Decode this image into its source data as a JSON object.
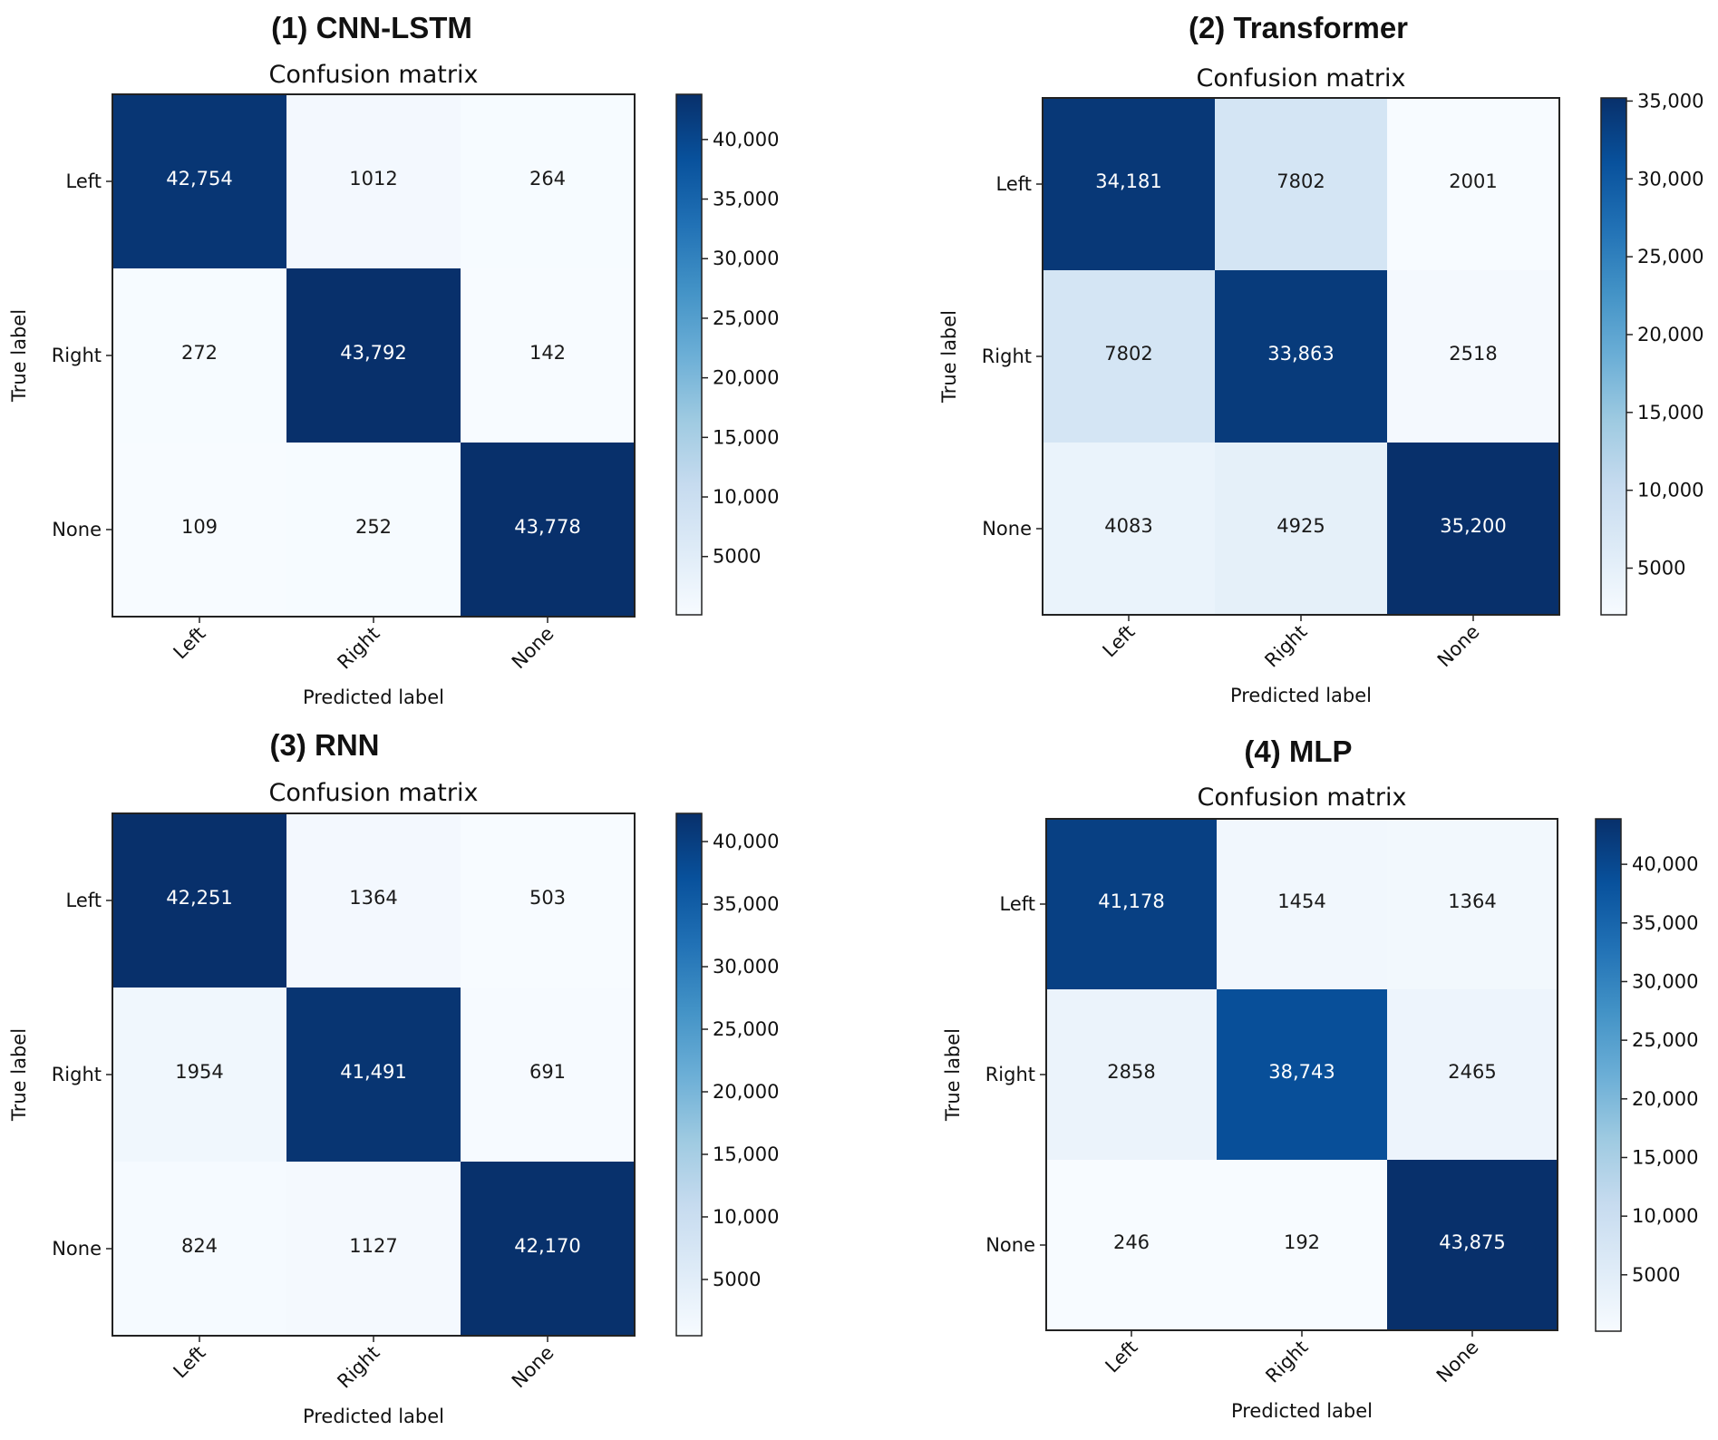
{
  "colormap": [
    "#f7fbff",
    "#deebf7",
    "#c6dbef",
    "#9ecae1",
    "#6baed6",
    "#4292c6",
    "#2171b5",
    "#08519c",
    "#08306b"
  ],
  "chart_data": [
    {
      "type": "heatmap",
      "panel_title": "(1) CNN-LSTM",
      "title": "Confusion matrix",
      "xlabel": "Predicted label",
      "ylabel": "True label",
      "x_categories": [
        "Left",
        "Right",
        "None"
      ],
      "y_categories": [
        "Left",
        "Right",
        "None"
      ],
      "values": [
        [
          42754,
          1012,
          264
        ],
        [
          272,
          43792,
          142
        ],
        [
          109,
          252,
          43778
        ]
      ],
      "cell_labels": [
        [
          "42,754",
          "1012",
          "264"
        ],
        [
          "272",
          "43,792",
          "142"
        ],
        [
          "109",
          "252",
          "43,778"
        ]
      ],
      "colorbar_range": [
        109,
        43792
      ],
      "colorbar_ticks": [
        5000,
        10000,
        15000,
        20000,
        25000,
        30000,
        35000,
        40000
      ],
      "colorbar_tick_labels": [
        "5000",
        "10,000",
        "15,000",
        "20,000",
        "25,000",
        "30,000",
        "35,000",
        "40,000"
      ]
    },
    {
      "type": "heatmap",
      "panel_title": "(2) Transformer",
      "title": "Confusion matrix",
      "xlabel": "Predicted label",
      "ylabel": "True label",
      "x_categories": [
        "Left",
        "Right",
        "None"
      ],
      "y_categories": [
        "Left",
        "Right",
        "None"
      ],
      "values": [
        [
          34181,
          7802,
          2001
        ],
        [
          7802,
          33863,
          2518
        ],
        [
          4083,
          4925,
          35200
        ]
      ],
      "cell_labels": [
        [
          "34,181",
          "7802",
          "2001"
        ],
        [
          "7802",
          "33,863",
          "2518"
        ],
        [
          "4083",
          "4925",
          "35,200"
        ]
      ],
      "colorbar_range": [
        2001,
        35200
      ],
      "colorbar_ticks": [
        5000,
        10000,
        15000,
        20000,
        25000,
        30000,
        35000
      ],
      "colorbar_tick_labels": [
        "5000",
        "10,000",
        "15,000",
        "20,000",
        "25,000",
        "30,000",
        "35,000"
      ]
    },
    {
      "type": "heatmap",
      "panel_title": "(3) RNN",
      "title": "Confusion matrix",
      "xlabel": "Predicted label",
      "ylabel": "True label",
      "x_categories": [
        "Left",
        "Right",
        "None"
      ],
      "y_categories": [
        "Left",
        "Right",
        "None"
      ],
      "values": [
        [
          42251,
          1364,
          503
        ],
        [
          1954,
          41491,
          691
        ],
        [
          824,
          1127,
          42170
        ]
      ],
      "cell_labels": [
        [
          "42,251",
          "1364",
          "503"
        ],
        [
          "1954",
          "41,491",
          "691"
        ],
        [
          "824",
          "1127",
          "42,170"
        ]
      ],
      "colorbar_range": [
        503,
        42251
      ],
      "colorbar_ticks": [
        5000,
        10000,
        15000,
        20000,
        25000,
        30000,
        35000,
        40000
      ],
      "colorbar_tick_labels": [
        "5000",
        "10,000",
        "15,000",
        "20,000",
        "25,000",
        "30,000",
        "35,000",
        "40,000"
      ]
    },
    {
      "type": "heatmap",
      "panel_title": "(4) MLP",
      "title": "Confusion matrix",
      "xlabel": "Predicted label",
      "ylabel": "True label",
      "x_categories": [
        "Left",
        "Right",
        "None"
      ],
      "y_categories": [
        "Left",
        "Right",
        "None"
      ],
      "values": [
        [
          41178,
          1454,
          1364
        ],
        [
          2858,
          38743,
          2465
        ],
        [
          246,
          192,
          43875
        ]
      ],
      "cell_labels": [
        [
          "41,178",
          "1454",
          "1364"
        ],
        [
          "2858",
          "38,743",
          "2465"
        ],
        [
          "246",
          "192",
          "43,875"
        ]
      ],
      "colorbar_range": [
        192,
        43875
      ],
      "colorbar_ticks": [
        5000,
        10000,
        15000,
        20000,
        25000,
        30000,
        35000,
        40000
      ],
      "colorbar_tick_labels": [
        "5000",
        "10,000",
        "15,000",
        "20,000",
        "25,000",
        "30,000",
        "35,000",
        "40,000"
      ]
    }
  ]
}
